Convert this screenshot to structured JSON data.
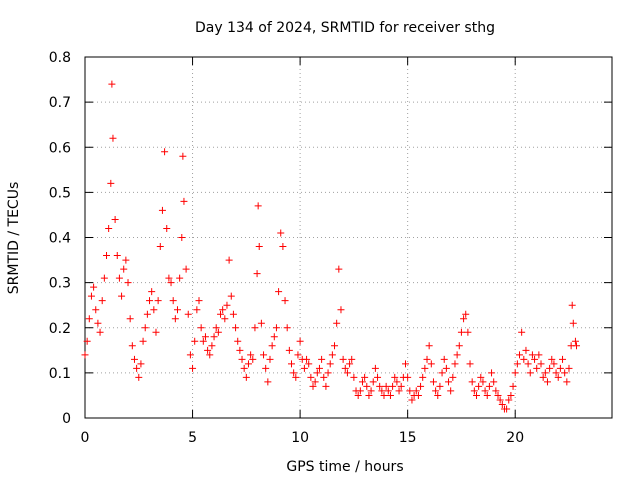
{
  "chart_data": {
    "type": "scatter",
    "title": "Day 134 of 2024, SRMTID for receiver sthg",
    "xlabel": "GPS time / hours",
    "ylabel": "SRMTID / TECUs",
    "xlim": [
      0,
      24.5
    ],
    "ylim": [
      0,
      0.8
    ],
    "xticks": [
      0,
      5,
      10,
      15,
      20
    ],
    "xtick_labels": [
      "0",
      "5",
      "10",
      "15",
      "20"
    ],
    "yticks": [
      0,
      0.1,
      0.2,
      0.3,
      0.4,
      0.5,
      0.6,
      0.7,
      0.8
    ],
    "ytick_labels": [
      "0",
      "0.1",
      "0.2",
      "0.3",
      "0.4",
      "0.5",
      "0.6",
      "0.7",
      "0.8"
    ],
    "grid": true,
    "marker": "+",
    "color": "#ff0000",
    "series": [
      {
        "name": "SRMTID",
        "points": [
          [
            0.0,
            0.14
          ],
          [
            0.1,
            0.17
          ],
          [
            0.2,
            0.22
          ],
          [
            0.3,
            0.27
          ],
          [
            0.4,
            0.29
          ],
          [
            0.5,
            0.24
          ],
          [
            0.6,
            0.21
          ],
          [
            0.7,
            0.19
          ],
          [
            0.8,
            0.26
          ],
          [
            0.9,
            0.31
          ],
          [
            1.0,
            0.36
          ],
          [
            1.1,
            0.42
          ],
          [
            1.2,
            0.52
          ],
          [
            1.25,
            0.74
          ],
          [
            1.3,
            0.62
          ],
          [
            1.4,
            0.44
          ],
          [
            1.5,
            0.36
          ],
          [
            1.6,
            0.31
          ],
          [
            1.7,
            0.27
          ],
          [
            1.8,
            0.33
          ],
          [
            1.9,
            0.35
          ],
          [
            2.0,
            0.3
          ],
          [
            2.1,
            0.22
          ],
          [
            2.2,
            0.16
          ],
          [
            2.3,
            0.13
          ],
          [
            2.4,
            0.11
          ],
          [
            2.5,
            0.09
          ],
          [
            2.6,
            0.12
          ],
          [
            2.7,
            0.17
          ],
          [
            2.8,
            0.2
          ],
          [
            2.9,
            0.23
          ],
          [
            3.0,
            0.26
          ],
          [
            3.1,
            0.28
          ],
          [
            3.2,
            0.24
          ],
          [
            3.3,
            0.19
          ],
          [
            3.4,
            0.26
          ],
          [
            3.5,
            0.38
          ],
          [
            3.6,
            0.46
          ],
          [
            3.7,
            0.59
          ],
          [
            3.8,
            0.42
          ],
          [
            3.9,
            0.31
          ],
          [
            4.0,
            0.3
          ],
          [
            4.1,
            0.26
          ],
          [
            4.2,
            0.22
          ],
          [
            4.3,
            0.24
          ],
          [
            4.4,
            0.31
          ],
          [
            4.5,
            0.4
          ],
          [
            4.55,
            0.58
          ],
          [
            4.6,
            0.48
          ],
          [
            4.7,
            0.33
          ],
          [
            4.8,
            0.23
          ],
          [
            4.9,
            0.14
          ],
          [
            5.0,
            0.11
          ],
          [
            5.1,
            0.17
          ],
          [
            5.2,
            0.24
          ],
          [
            5.3,
            0.26
          ],
          [
            5.4,
            0.2
          ],
          [
            5.5,
            0.17
          ],
          [
            5.6,
            0.18
          ],
          [
            5.7,
            0.15
          ],
          [
            5.8,
            0.14
          ],
          [
            5.9,
            0.16
          ],
          [
            6.0,
            0.18
          ],
          [
            6.1,
            0.2
          ],
          [
            6.2,
            0.19
          ],
          [
            6.3,
            0.23
          ],
          [
            6.4,
            0.24
          ],
          [
            6.5,
            0.22
          ],
          [
            6.6,
            0.25
          ],
          [
            6.7,
            0.35
          ],
          [
            6.8,
            0.27
          ],
          [
            6.9,
            0.23
          ],
          [
            7.0,
            0.2
          ],
          [
            7.1,
            0.17
          ],
          [
            7.2,
            0.15
          ],
          [
            7.3,
            0.13
          ],
          [
            7.4,
            0.11
          ],
          [
            7.5,
            0.09
          ],
          [
            7.6,
            0.12
          ],
          [
            7.7,
            0.14
          ],
          [
            7.8,
            0.13
          ],
          [
            7.9,
            0.2
          ],
          [
            8.0,
            0.32
          ],
          [
            8.05,
            0.47
          ],
          [
            8.1,
            0.38
          ],
          [
            8.2,
            0.21
          ],
          [
            8.3,
            0.14
          ],
          [
            8.4,
            0.11
          ],
          [
            8.5,
            0.08
          ],
          [
            8.6,
            0.13
          ],
          [
            8.7,
            0.16
          ],
          [
            8.8,
            0.18
          ],
          [
            8.9,
            0.2
          ],
          [
            9.0,
            0.28
          ],
          [
            9.1,
            0.41
          ],
          [
            9.2,
            0.38
          ],
          [
            9.3,
            0.26
          ],
          [
            9.4,
            0.2
          ],
          [
            9.5,
            0.15
          ],
          [
            9.6,
            0.12
          ],
          [
            9.7,
            0.1
          ],
          [
            9.8,
            0.09
          ],
          [
            9.9,
            0.14
          ],
          [
            10.0,
            0.17
          ],
          [
            10.1,
            0.13
          ],
          [
            10.2,
            0.11
          ],
          [
            10.3,
            0.13
          ],
          [
            10.4,
            0.12
          ],
          [
            10.5,
            0.09
          ],
          [
            10.6,
            0.07
          ],
          [
            10.7,
            0.08
          ],
          [
            10.8,
            0.1
          ],
          [
            10.9,
            0.11
          ],
          [
            11.0,
            0.13
          ],
          [
            11.1,
            0.09
          ],
          [
            11.2,
            0.07
          ],
          [
            11.3,
            0.1
          ],
          [
            11.4,
            0.12
          ],
          [
            11.5,
            0.14
          ],
          [
            11.6,
            0.16
          ],
          [
            11.7,
            0.21
          ],
          [
            11.8,
            0.33
          ],
          [
            11.9,
            0.24
          ],
          [
            12.0,
            0.13
          ],
          [
            12.1,
            0.11
          ],
          [
            12.2,
            0.1
          ],
          [
            12.3,
            0.12
          ],
          [
            12.4,
            0.13
          ],
          [
            12.5,
            0.09
          ],
          [
            12.6,
            0.06
          ],
          [
            12.7,
            0.05
          ],
          [
            12.8,
            0.06
          ],
          [
            12.9,
            0.08
          ],
          [
            13.0,
            0.09
          ],
          [
            13.1,
            0.07
          ],
          [
            13.2,
            0.05
          ],
          [
            13.3,
            0.06
          ],
          [
            13.4,
            0.08
          ],
          [
            13.5,
            0.11
          ],
          [
            13.6,
            0.09
          ],
          [
            13.7,
            0.07
          ],
          [
            13.8,
            0.06
          ],
          [
            13.9,
            0.05
          ],
          [
            14.0,
            0.07
          ],
          [
            14.1,
            0.06
          ],
          [
            14.2,
            0.05
          ],
          [
            14.3,
            0.07
          ],
          [
            14.4,
            0.09
          ],
          [
            14.5,
            0.08
          ],
          [
            14.6,
            0.06
          ],
          [
            14.7,
            0.07
          ],
          [
            14.8,
            0.09
          ],
          [
            14.9,
            0.12
          ],
          [
            15.0,
            0.09
          ],
          [
            15.1,
            0.06
          ],
          [
            15.2,
            0.04
          ],
          [
            15.3,
            0.05
          ],
          [
            15.4,
            0.06
          ],
          [
            15.5,
            0.05
          ],
          [
            15.6,
            0.07
          ],
          [
            15.7,
            0.09
          ],
          [
            15.8,
            0.11
          ],
          [
            15.9,
            0.13
          ],
          [
            16.0,
            0.16
          ],
          [
            16.1,
            0.12
          ],
          [
            16.2,
            0.08
          ],
          [
            16.3,
            0.06
          ],
          [
            16.4,
            0.05
          ],
          [
            16.5,
            0.07
          ],
          [
            16.6,
            0.1
          ],
          [
            16.7,
            0.13
          ],
          [
            16.8,
            0.11
          ],
          [
            16.9,
            0.08
          ],
          [
            17.0,
            0.06
          ],
          [
            17.1,
            0.09
          ],
          [
            17.2,
            0.12
          ],
          [
            17.3,
            0.14
          ],
          [
            17.4,
            0.16
          ],
          [
            17.5,
            0.19
          ],
          [
            17.6,
            0.22
          ],
          [
            17.7,
            0.23
          ],
          [
            17.8,
            0.19
          ],
          [
            17.9,
            0.12
          ],
          [
            18.0,
            0.08
          ],
          [
            18.1,
            0.06
          ],
          [
            18.2,
            0.05
          ],
          [
            18.3,
            0.07
          ],
          [
            18.4,
            0.09
          ],
          [
            18.5,
            0.08
          ],
          [
            18.6,
            0.06
          ],
          [
            18.7,
            0.05
          ],
          [
            18.8,
            0.07
          ],
          [
            18.9,
            0.1
          ],
          [
            19.0,
            0.08
          ],
          [
            19.1,
            0.06
          ],
          [
            19.2,
            0.05
          ],
          [
            19.3,
            0.04
          ],
          [
            19.4,
            0.03
          ],
          [
            19.5,
            0.02
          ],
          [
            19.6,
            0.02
          ],
          [
            19.7,
            0.04
          ],
          [
            19.8,
            0.05
          ],
          [
            19.9,
            0.07
          ],
          [
            20.0,
            0.1
          ],
          [
            20.1,
            0.12
          ],
          [
            20.2,
            0.14
          ],
          [
            20.3,
            0.19
          ],
          [
            20.4,
            0.13
          ],
          [
            20.5,
            0.15
          ],
          [
            20.6,
            0.12
          ],
          [
            20.7,
            0.1
          ],
          [
            20.8,
            0.14
          ],
          [
            20.9,
            0.13
          ],
          [
            21.0,
            0.11
          ],
          [
            21.1,
            0.14
          ],
          [
            21.2,
            0.12
          ],
          [
            21.3,
            0.09
          ],
          [
            21.4,
            0.1
          ],
          [
            21.5,
            0.08
          ],
          [
            21.6,
            0.11
          ],
          [
            21.7,
            0.13
          ],
          [
            21.8,
            0.12
          ],
          [
            21.9,
            0.1
          ],
          [
            22.0,
            0.09
          ],
          [
            22.1,
            0.11
          ],
          [
            22.2,
            0.13
          ],
          [
            22.3,
            0.1
          ],
          [
            22.4,
            0.08
          ],
          [
            22.5,
            0.11
          ],
          [
            22.6,
            0.16
          ],
          [
            22.65,
            0.25
          ],
          [
            22.7,
            0.21
          ],
          [
            22.8,
            0.17
          ],
          [
            22.85,
            0.16
          ]
        ]
      }
    ]
  }
}
